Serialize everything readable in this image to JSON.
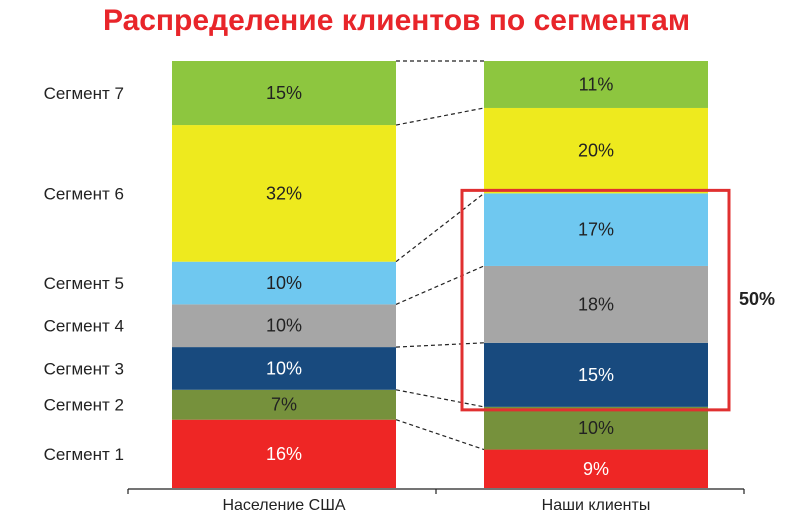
{
  "chart_data": {
    "type": "bar",
    "stacked": true,
    "percent": true,
    "title": "Распределение клиентов по сегментам",
    "categories": [
      "Население США",
      "Наши клиенты"
    ],
    "series": [
      {
        "name": "Сегмент 1",
        "values": [
          16,
          9
        ],
        "color": "#ee2625",
        "label_color": "#ffffff"
      },
      {
        "name": "Сегмент 2",
        "values": [
          7,
          10
        ],
        "color": "#76913c",
        "label_color": "#222222"
      },
      {
        "name": "Сегмент 3",
        "values": [
          10,
          15
        ],
        "color": "#184a7e",
        "label_color": "#ffffff"
      },
      {
        "name": "Сегмент 4",
        "values": [
          10,
          18
        ],
        "color": "#a6a6a6",
        "label_color": "#222222"
      },
      {
        "name": "Сегмент 5",
        "values": [
          10,
          17
        ],
        "color": "#6fc8f0",
        "label_color": "#222222"
      },
      {
        "name": "Сегмент 6",
        "values": [
          32,
          20
        ],
        "color": "#eeea1e",
        "label_color": "#222222"
      },
      {
        "name": "Сегмент 7",
        "values": [
          15,
          11
        ],
        "color": "#8dc63f",
        "label_color": "#222222"
      }
    ],
    "annotation": {
      "label": "50%",
      "bar_index": 1,
      "segments_from": 2,
      "segments_to": 4,
      "color": "#e03030"
    },
    "connectors": true
  }
}
